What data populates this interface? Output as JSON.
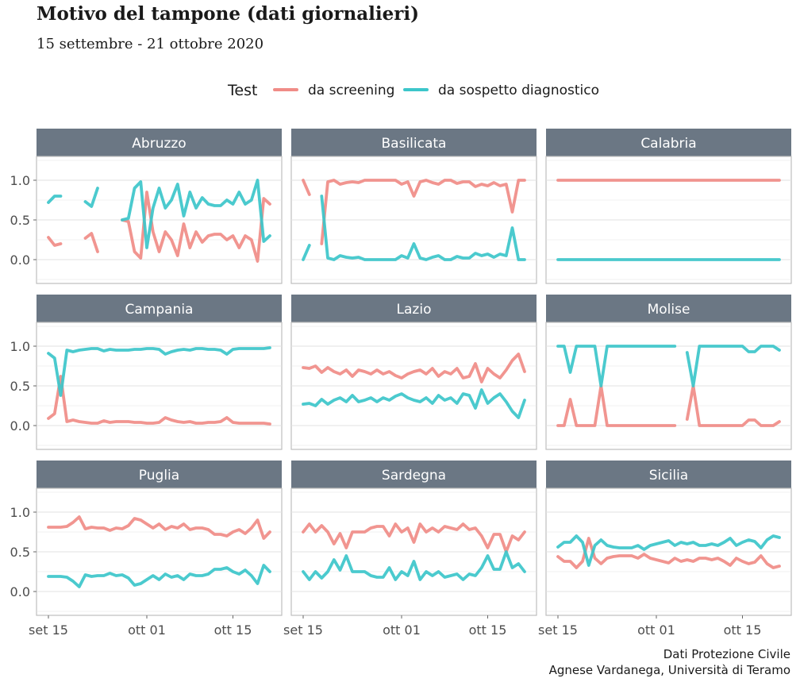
{
  "header": {
    "title": "Motivo del tampone (dati giornalieri)",
    "subtitle": "15 settembre -  21 ottobre 2020"
  },
  "legend": {
    "title": "Test",
    "position": "top",
    "items": [
      {
        "label": "da screening",
        "color": "#F08C87"
      },
      {
        "label": "da sospetto diagnostico",
        "color": "#3CC6CA"
      }
    ]
  },
  "caption": {
    "line1": "Dati Protezione Civile",
    "line2": "Agnese Vardanega, Università di Teramo"
  },
  "chart_data": {
    "type": "line",
    "layout": "facet-grid 3x3",
    "x_start_date": "2020-09-15",
    "x_end_date": "2020-10-21",
    "x_tick_labels": [
      "set 15",
      "ott 01",
      "ott 15"
    ],
    "y_tick_labels": [
      "0.0",
      "0.5",
      "1.0"
    ],
    "y_ticks": [
      0,
      0.5,
      1
    ],
    "ylim": [
      -0.3,
      1.3
    ],
    "grid": true,
    "strip_color": "#6B7784",
    "panel_border_color": "#BDBDBD",
    "panels": [
      {
        "name": "Abruzzo",
        "series": [
          {
            "name": "da screening",
            "values": [
              0.28,
              0.18,
              0.2,
              null,
              null,
              null,
              0.27,
              0.33,
              0.1,
              null,
              null,
              null,
              0.5,
              0.48,
              0.1,
              0.02,
              0.85,
              0.35,
              0.1,
              0.35,
              0.25,
              0.05,
              0.45,
              0.15,
              0.35,
              0.22,
              0.3,
              0.32,
              0.32,
              0.25,
              0.3,
              0.15,
              0.3,
              0.25,
              -0.02,
              0.77,
              0.7
            ]
          },
          {
            "name": "da sospetto diagnostico",
            "values": [
              0.72,
              0.8,
              0.8,
              null,
              null,
              null,
              0.73,
              0.67,
              0.9,
              null,
              null,
              null,
              0.5,
              0.52,
              0.9,
              0.98,
              0.15,
              0.65,
              0.9,
              0.65,
              0.75,
              0.95,
              0.55,
              0.85,
              0.65,
              0.78,
              0.7,
              0.68,
              0.68,
              0.75,
              0.7,
              0.85,
              0.7,
              0.75,
              1.0,
              0.23,
              0.3
            ]
          }
        ]
      },
      {
        "name": "Basilicata",
        "series": [
          {
            "name": "da screening",
            "values": [
              1.0,
              0.82,
              null,
              0.2,
              0.98,
              1.0,
              0.95,
              0.97,
              0.98,
              0.97,
              1.0,
              1.0,
              1.0,
              1.0,
              1.0,
              1.0,
              0.95,
              0.98,
              0.8,
              0.98,
              1.0,
              0.97,
              0.95,
              1.0,
              1.0,
              0.96,
              0.98,
              0.98,
              0.92,
              0.95,
              0.93,
              0.97,
              0.93,
              0.95,
              0.6,
              1.0,
              1.0
            ]
          },
          {
            "name": "da sospetto diagnostico",
            "values": [
              0.0,
              0.18,
              null,
              0.8,
              0.02,
              0.0,
              0.05,
              0.03,
              0.02,
              0.03,
              0.0,
              0.0,
              0.0,
              0.0,
              0.0,
              0.0,
              0.05,
              0.02,
              0.2,
              0.02,
              0.0,
              0.03,
              0.05,
              0.0,
              0.0,
              0.04,
              0.02,
              0.02,
              0.08,
              0.05,
              0.07,
              0.03,
              0.07,
              0.05,
              0.4,
              0.0,
              0.0
            ]
          }
        ]
      },
      {
        "name": "Calabria",
        "series": [
          {
            "name": "da screening",
            "values": [
              1,
              1,
              1,
              1,
              1,
              1,
              1,
              1,
              1,
              1,
              1,
              1,
              1,
              1,
              1,
              1,
              1,
              1,
              1,
              1,
              1,
              1,
              1,
              1,
              1,
              1,
              1,
              1,
              1,
              1,
              1,
              1,
              1,
              1,
              1,
              1,
              1
            ]
          },
          {
            "name": "da sospetto diagnostico",
            "values": [
              0,
              0,
              0,
              0,
              0,
              0,
              0,
              0,
              0,
              0,
              0,
              0,
              0,
              0,
              0,
              0,
              0,
              0,
              0,
              0,
              0,
              0,
              0,
              0,
              0,
              0,
              0,
              0,
              0,
              0,
              0,
              0,
              0,
              0,
              0,
              0,
              0
            ]
          }
        ]
      },
      {
        "name": "Campania",
        "series": [
          {
            "name": "da screening",
            "values": [
              0.09,
              0.15,
              0.62,
              0.05,
              0.07,
              0.05,
              0.04,
              0.03,
              0.03,
              0.06,
              0.04,
              0.05,
              0.05,
              0.05,
              0.04,
              0.04,
              0.03,
              0.03,
              0.04,
              0.1,
              0.07,
              0.05,
              0.04,
              0.05,
              0.03,
              0.03,
              0.04,
              0.04,
              0.05,
              0.1,
              0.04,
              0.03,
              0.03,
              0.03,
              0.03,
              0.03,
              0.02
            ]
          },
          {
            "name": "da sospetto diagnostico",
            "values": [
              0.91,
              0.85,
              0.38,
              0.95,
              0.93,
              0.95,
              0.96,
              0.97,
              0.97,
              0.94,
              0.96,
              0.95,
              0.95,
              0.95,
              0.96,
              0.96,
              0.97,
              0.97,
              0.96,
              0.9,
              0.93,
              0.95,
              0.96,
              0.95,
              0.97,
              0.97,
              0.96,
              0.96,
              0.95,
              0.9,
              0.96,
              0.97,
              0.97,
              0.97,
              0.97,
              0.97,
              0.98
            ]
          }
        ]
      },
      {
        "name": "Lazio",
        "series": [
          {
            "name": "da screening",
            "values": [
              0.73,
              0.72,
              0.75,
              0.67,
              0.73,
              0.68,
              0.65,
              0.7,
              0.62,
              0.7,
              0.68,
              0.65,
              0.7,
              0.65,
              0.68,
              0.63,
              0.6,
              0.65,
              0.68,
              0.7,
              0.65,
              0.72,
              0.62,
              0.68,
              0.65,
              0.72,
              0.6,
              0.62,
              0.78,
              0.55,
              0.72,
              0.65,
              0.6,
              0.7,
              0.82,
              0.9,
              0.68
            ]
          },
          {
            "name": "da sospetto diagnostico",
            "values": [
              0.27,
              0.28,
              0.25,
              0.33,
              0.27,
              0.32,
              0.35,
              0.3,
              0.38,
              0.3,
              0.32,
              0.35,
              0.3,
              0.35,
              0.32,
              0.37,
              0.4,
              0.35,
              0.32,
              0.3,
              0.35,
              0.28,
              0.38,
              0.32,
              0.35,
              0.28,
              0.4,
              0.38,
              0.22,
              0.45,
              0.28,
              0.35,
              0.4,
              0.3,
              0.18,
              0.1,
              0.32
            ]
          }
        ]
      },
      {
        "name": "Molise",
        "series": [
          {
            "name": "da screening",
            "values": [
              0.0,
              0.0,
              0.33,
              0.0,
              0.0,
              0.0,
              0.0,
              0.5,
              0.0,
              0.0,
              0.0,
              0.0,
              0.0,
              0.0,
              0.0,
              0.0,
              0.0,
              0.0,
              0.0,
              0.0,
              null,
              0.08,
              0.5,
              0.0,
              0.0,
              0.0,
              0.0,
              0.0,
              0.0,
              0.0,
              0.0,
              0.07,
              0.07,
              0.0,
              0.0,
              0.0,
              0.05
            ]
          },
          {
            "name": "da sospetto diagnostico",
            "values": [
              1.0,
              1.0,
              0.67,
              1.0,
              1.0,
              1.0,
              1.0,
              0.5,
              1.0,
              1.0,
              1.0,
              1.0,
              1.0,
              1.0,
              1.0,
              1.0,
              1.0,
              1.0,
              1.0,
              1.0,
              null,
              0.92,
              0.5,
              1.0,
              1.0,
              1.0,
              1.0,
              1.0,
              1.0,
              1.0,
              1.0,
              0.93,
              0.93,
              1.0,
              1.0,
              1.0,
              0.95
            ]
          }
        ]
      },
      {
        "name": "Puglia",
        "series": [
          {
            "name": "da screening",
            "values": [
              0.81,
              0.81,
              0.81,
              0.82,
              0.87,
              0.94,
              0.79,
              0.81,
              0.8,
              0.8,
              0.77,
              0.8,
              0.79,
              0.83,
              0.92,
              0.9,
              0.85,
              0.8,
              0.85,
              0.78,
              0.82,
              0.8,
              0.85,
              0.78,
              0.8,
              0.8,
              0.78,
              0.72,
              0.72,
              0.7,
              0.75,
              0.78,
              0.73,
              0.8,
              0.9,
              0.67,
              0.75
            ]
          },
          {
            "name": "da sospetto diagnostico",
            "values": [
              0.19,
              0.19,
              0.19,
              0.18,
              0.13,
              0.06,
              0.21,
              0.19,
              0.2,
              0.2,
              0.23,
              0.2,
              0.21,
              0.17,
              0.08,
              0.1,
              0.15,
              0.2,
              0.15,
              0.22,
              0.18,
              0.2,
              0.15,
              0.22,
              0.2,
              0.2,
              0.22,
              0.28,
              0.28,
              0.3,
              0.25,
              0.22,
              0.27,
              0.2,
              0.1,
              0.33,
              0.25
            ]
          }
        ]
      },
      {
        "name": "Sardegna",
        "series": [
          {
            "name": "da screening",
            "values": [
              0.75,
              0.85,
              0.75,
              0.83,
              0.75,
              0.6,
              0.73,
              0.55,
              0.75,
              0.75,
              0.75,
              0.8,
              0.82,
              0.82,
              0.7,
              0.85,
              0.75,
              0.8,
              0.62,
              0.85,
              0.75,
              0.8,
              0.75,
              0.82,
              0.8,
              0.78,
              0.85,
              0.78,
              0.8,
              0.7,
              0.55,
              0.72,
              0.72,
              0.5,
              0.7,
              0.65,
              0.75
            ]
          },
          {
            "name": "da sospetto diagnostico",
            "values": [
              0.25,
              0.15,
              0.25,
              0.17,
              0.25,
              0.4,
              0.27,
              0.45,
              0.25,
              0.25,
              0.25,
              0.2,
              0.18,
              0.18,
              0.3,
              0.15,
              0.25,
              0.2,
              0.38,
              0.15,
              0.25,
              0.2,
              0.25,
              0.18,
              0.2,
              0.22,
              0.15,
              0.22,
              0.2,
              0.3,
              0.45,
              0.28,
              0.28,
              0.5,
              0.3,
              0.35,
              0.25
            ]
          }
        ]
      },
      {
        "name": "Sicilia",
        "series": [
          {
            "name": "da screening",
            "values": [
              0.44,
              0.38,
              0.38,
              0.3,
              0.38,
              0.67,
              0.42,
              0.35,
              0.42,
              0.44,
              0.45,
              0.45,
              0.45,
              0.42,
              0.47,
              0.42,
              0.4,
              0.38,
              0.36,
              0.42,
              0.38,
              0.4,
              0.38,
              0.42,
              0.42,
              0.4,
              0.42,
              0.38,
              0.33,
              0.42,
              0.38,
              0.35,
              0.37,
              0.45,
              0.35,
              0.3,
              0.32
            ]
          },
          {
            "name": "da sospetto diagnostico",
            "values": [
              0.56,
              0.62,
              0.62,
              0.7,
              0.62,
              0.33,
              0.58,
              0.65,
              0.58,
              0.56,
              0.55,
              0.55,
              0.55,
              0.58,
              0.53,
              0.58,
              0.6,
              0.62,
              0.64,
              0.58,
              0.62,
              0.6,
              0.62,
              0.58,
              0.58,
              0.6,
              0.58,
              0.62,
              0.67,
              0.58,
              0.62,
              0.65,
              0.63,
              0.55,
              0.65,
              0.7,
              0.68
            ]
          }
        ]
      }
    ]
  }
}
